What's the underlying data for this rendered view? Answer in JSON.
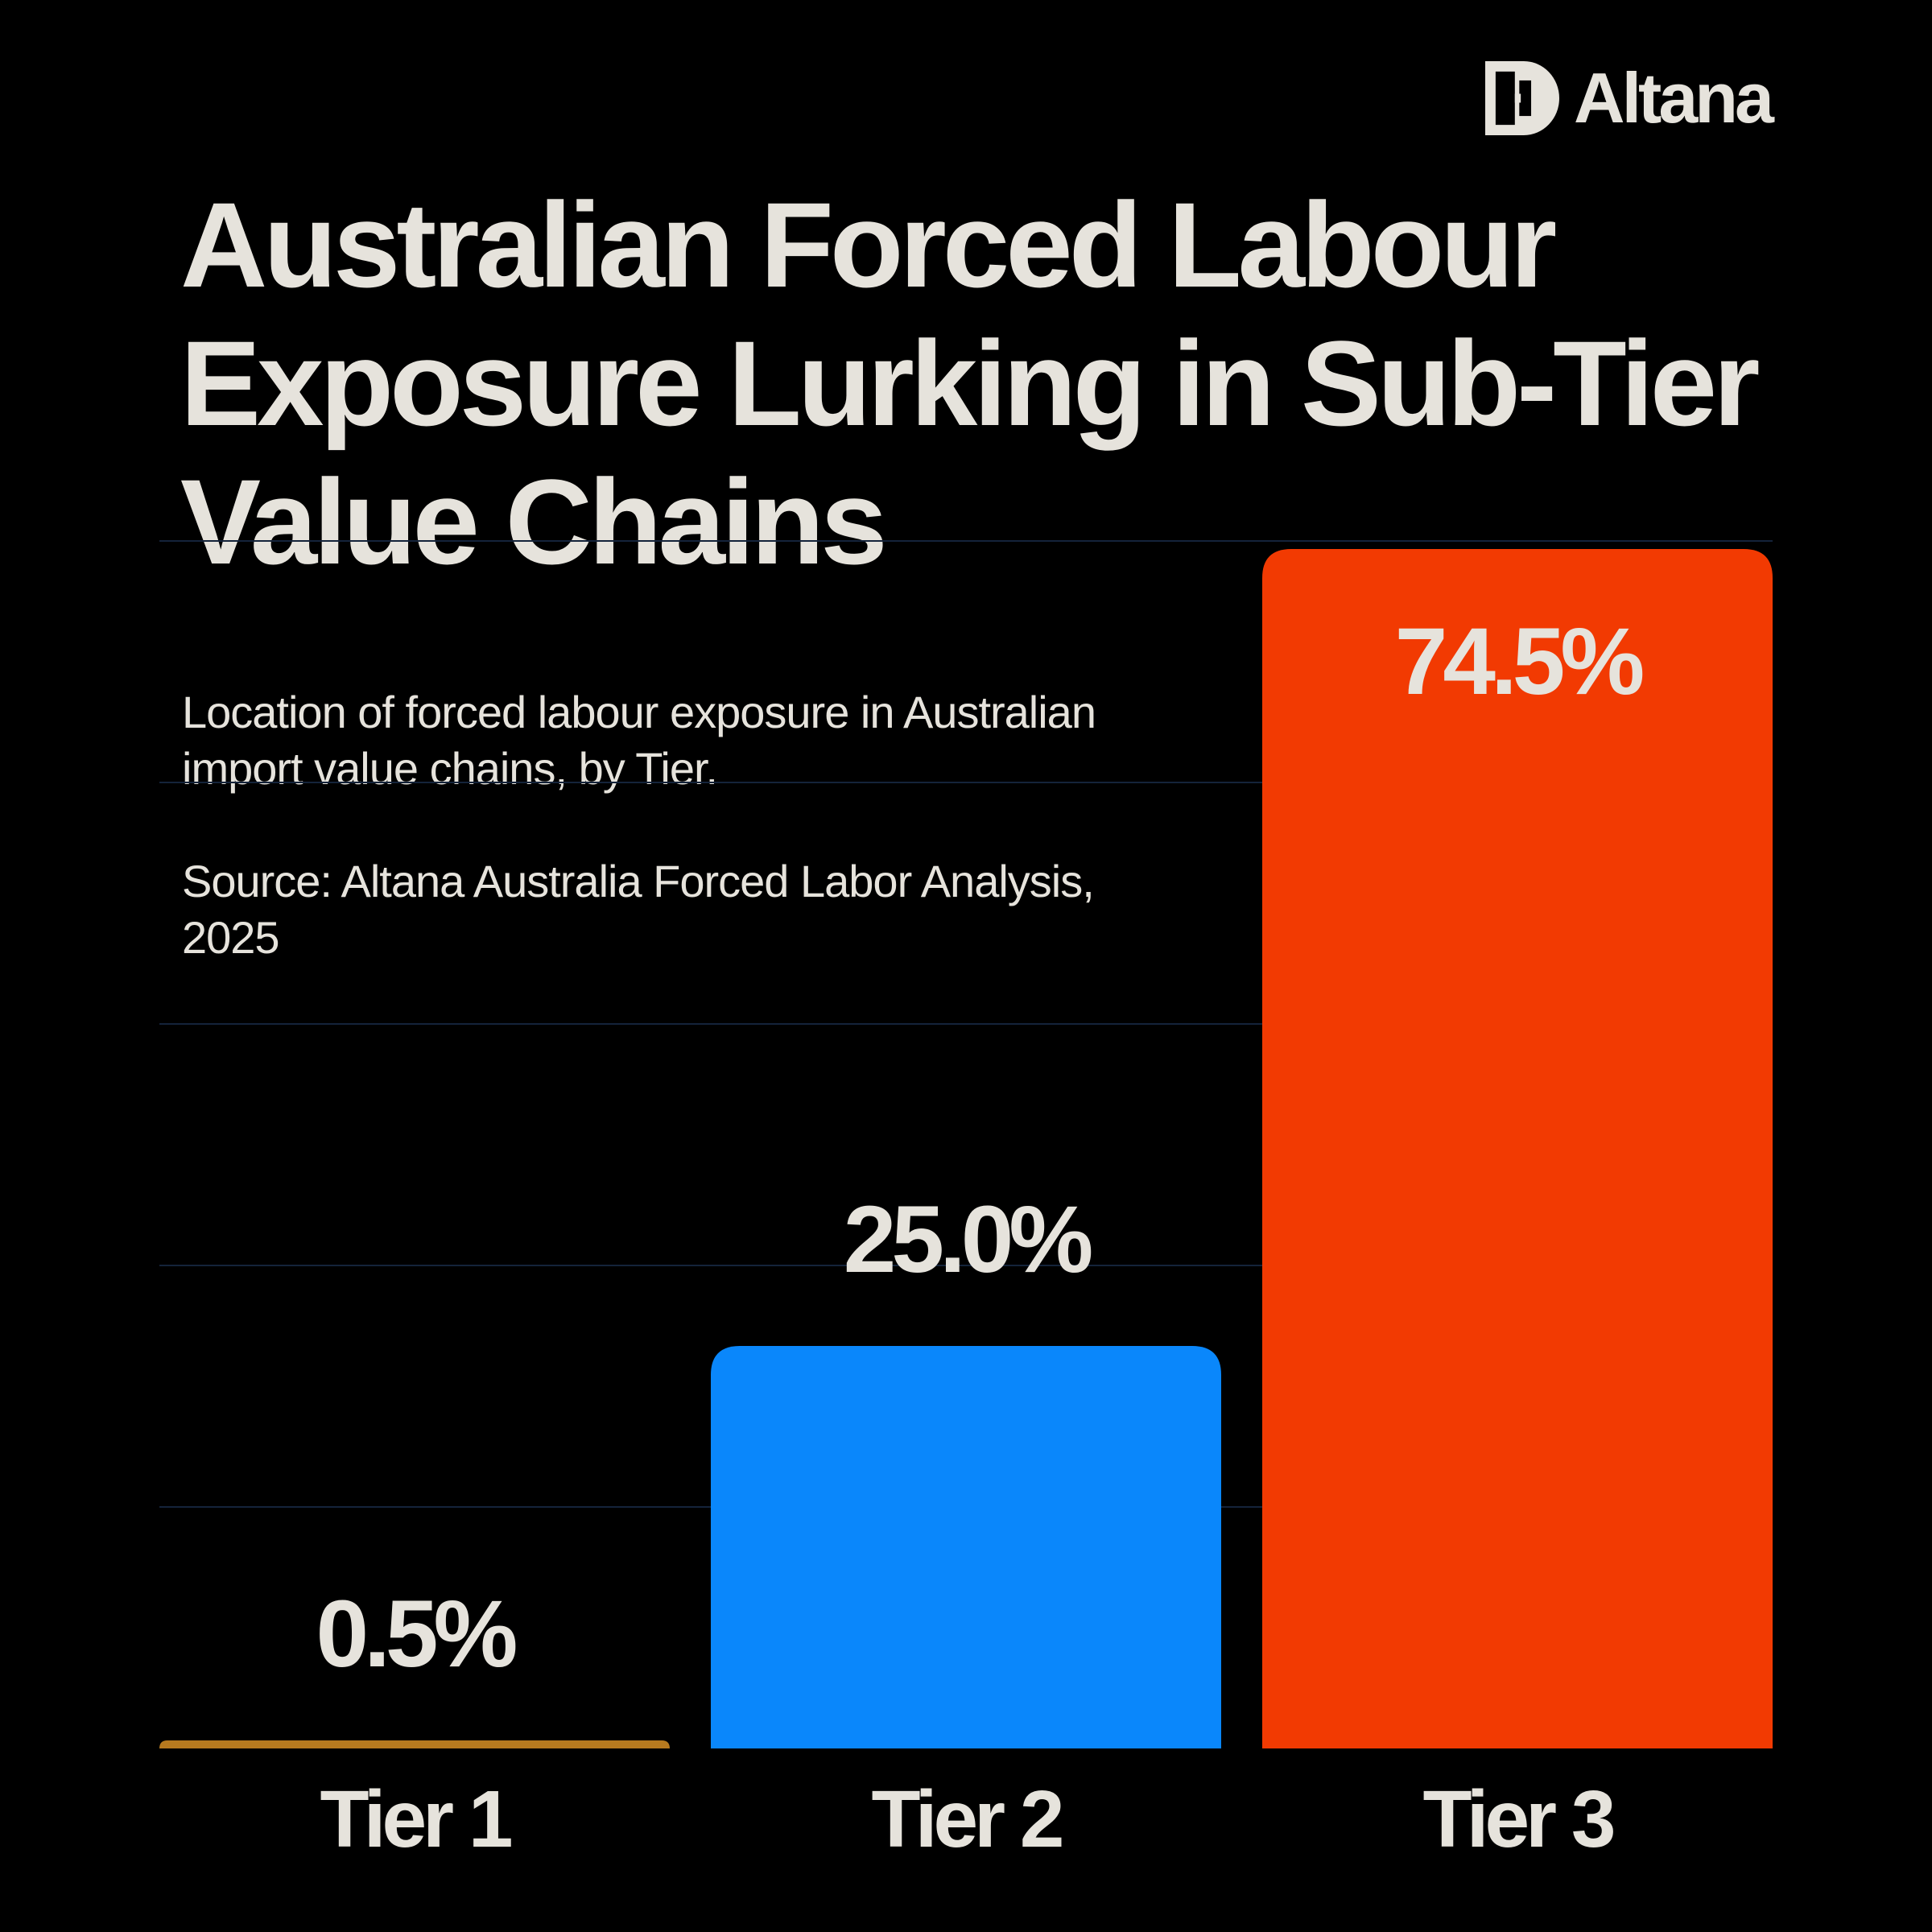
{
  "logo": {
    "text": "Altana"
  },
  "header": {
    "title": "Australian Forced Labour Exposure Lurking in Sub-Tier Value Chains",
    "subtitle": "Location of forced labour exposure in Australian import value chains, by Tier.",
    "source": "Source: Altana Australia Forced Labor Analysis, 2025"
  },
  "colors": {
    "background": "#000000",
    "text": "#e6e3dc",
    "gridline": "#14233a",
    "tier1": "#b77a1f",
    "tier2": "#0a87fb",
    "tier3": "#f23a02"
  },
  "chart_data": {
    "type": "bar",
    "title": "Australian Forced Labour Exposure Lurking in Sub-Tier Value Chains",
    "xlabel": "",
    "ylabel": "",
    "categories": [
      "Tier 1",
      "Tier 2",
      "Tier 3"
    ],
    "values": [
      0.5,
      25.0,
      74.5
    ],
    "value_labels": [
      "0.5%",
      "25.0%",
      "74.5%"
    ],
    "colors": [
      "#b77a1f",
      "#0a87fb",
      "#f23a02"
    ],
    "ylim": [
      0,
      75
    ],
    "grid": true,
    "legend": "none"
  }
}
